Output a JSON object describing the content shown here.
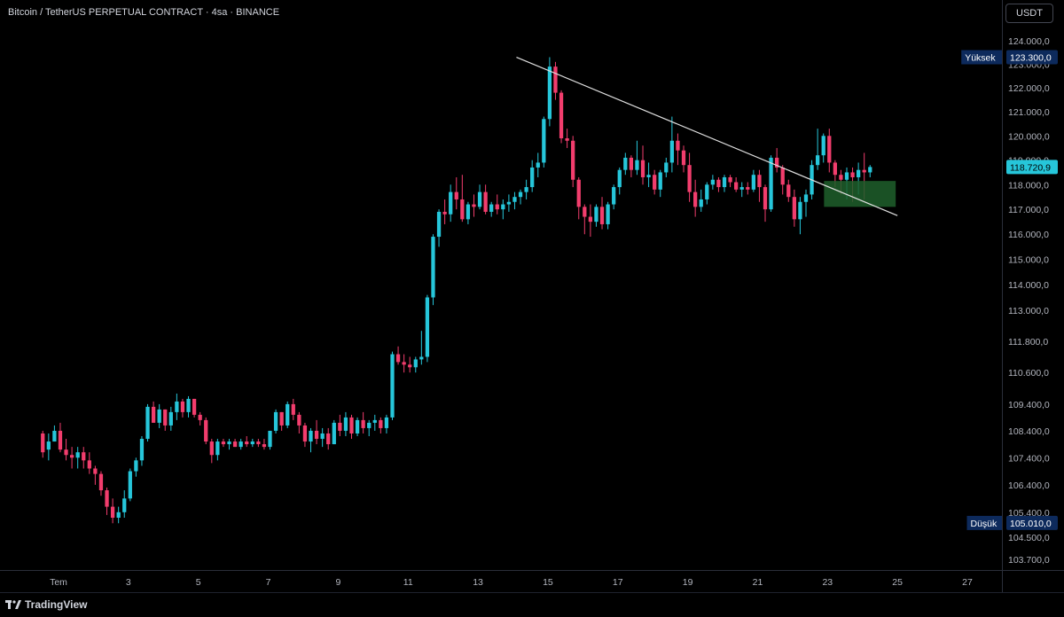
{
  "header": {
    "symbol_title": "Bitcoin / TetherUS PERPETUAL CONTRACT · 4sa · BINANCE",
    "currency": "USDT"
  },
  "footer": {
    "brand": "TradingView"
  },
  "colors": {
    "up": "#26c6da",
    "down": "#f23d6d",
    "trendline": "#e0e0e0",
    "zone": "#1f5f2b",
    "badge": "#0d2a5c",
    "current_badge": "#26c6da"
  },
  "chart_data": {
    "type": "candlestick",
    "title": "Bitcoin / TetherUS PERPETUAL CONTRACT · 4sa · BINANCE",
    "ylim": [
      103100,
      124700
    ],
    "yticks": [
      {
        "value": 124000,
        "label": "124.000,0"
      },
      {
        "value": 123000,
        "label": "123.000,0"
      },
      {
        "value": 122000,
        "label": "122.000,0"
      },
      {
        "value": 121000,
        "label": "121.000,0"
      },
      {
        "value": 120000,
        "label": "120.000,0"
      },
      {
        "value": 119000,
        "label": "119.000,0"
      },
      {
        "value": 118000,
        "label": "118.000,0"
      },
      {
        "value": 117000,
        "label": "117.000,0"
      },
      {
        "value": 116000,
        "label": "116.000,0"
      },
      {
        "value": 115000,
        "label": "115.000,0"
      },
      {
        "value": 114000,
        "label": "114.000,0"
      },
      {
        "value": 113000,
        "label": "113.000,0"
      },
      {
        "value": 111800,
        "label": "111.800,0"
      },
      {
        "value": 110600,
        "label": "110.600,0"
      },
      {
        "value": 109400,
        "label": "109.400,0"
      },
      {
        "value": 108400,
        "label": "108.400,0"
      },
      {
        "value": 107400,
        "label": "107.400,0"
      },
      {
        "value": 106400,
        "label": "106.400,0"
      },
      {
        "value": 105400,
        "label": "105.400,0"
      },
      {
        "value": 104500,
        "label": "104.500,0"
      },
      {
        "value": 103700,
        "label": "103.700,0"
      }
    ],
    "xticks": [
      {
        "day": 1,
        "label": "Tem"
      },
      {
        "day": 3,
        "label": "3"
      },
      {
        "day": 5,
        "label": "5"
      },
      {
        "day": 7,
        "label": "7"
      },
      {
        "day": 9,
        "label": "9"
      },
      {
        "day": 11,
        "label": "11"
      },
      {
        "day": 13,
        "label": "13"
      },
      {
        "day": 15,
        "label": "15"
      },
      {
        "day": 17,
        "label": "17"
      },
      {
        "day": 19,
        "label": "19"
      },
      {
        "day": 21,
        "label": "21"
      },
      {
        "day": 23,
        "label": "23"
      },
      {
        "day": 25,
        "label": "25"
      },
      {
        "day": 27,
        "label": "27"
      }
    ],
    "xlim": [
      0.5,
      28.0
    ],
    "start_day": 0.55,
    "bars_per_day": 6,
    "ohlc": [
      [
        108300,
        108400,
        107400,
        107600
      ],
      [
        107700,
        108300,
        107300,
        108000
      ],
      [
        108000,
        108600,
        108000,
        108400
      ],
      [
        108400,
        108700,
        107600,
        107700
      ],
      [
        107700,
        108100,
        107300,
        107500
      ],
      [
        107500,
        107800,
        107000,
        107400
      ],
      [
        107400,
        107800,
        107000,
        107600
      ],
      [
        107600,
        107800,
        107000,
        107300
      ],
      [
        107300,
        107600,
        106800,
        107000
      ],
      [
        107000,
        107100,
        106400,
        106800
      ],
      [
        106800,
        106900,
        106000,
        106200
      ],
      [
        106200,
        106300,
        105300,
        105600
      ],
      [
        105600,
        105900,
        105000,
        105200
      ],
      [
        105200,
        105600,
        105000,
        105400
      ],
      [
        105400,
        106200,
        105200,
        105900
      ],
      [
        105900,
        107000,
        105800,
        106900
      ],
      [
        106900,
        107400,
        106700,
        107300
      ],
      [
        107300,
        108200,
        107100,
        108100
      ],
      [
        108100,
        109400,
        108000,
        109300
      ],
      [
        109300,
        109500,
        108700,
        108700
      ],
      [
        108700,
        109400,
        108500,
        109200
      ],
      [
        109200,
        109200,
        108400,
        108600
      ],
      [
        108600,
        109300,
        108400,
        109100
      ],
      [
        109100,
        109800,
        108800,
        109500
      ],
      [
        109500,
        109600,
        108900,
        109100
      ],
      [
        109100,
        109700,
        108900,
        109600
      ],
      [
        109600,
        109600,
        108900,
        109000
      ],
      [
        109000,
        109100,
        108600,
        108800
      ],
      [
        108800,
        108900,
        107900,
        108000
      ],
      [
        108000,
        108100,
        107200,
        107500
      ],
      [
        107500,
        108100,
        107300,
        108000
      ],
      [
        108000,
        108100,
        107800,
        107900
      ],
      [
        107900,
        108100,
        107700,
        108000
      ],
      [
        108000,
        108100,
        107800,
        107800
      ],
      [
        107800,
        108100,
        107700,
        108000
      ],
      [
        108000,
        108200,
        107800,
        107900
      ],
      [
        107900,
        108100,
        107800,
        108000
      ],
      [
        108000,
        108100,
        107800,
        107900
      ],
      [
        107900,
        108100,
        107700,
        107800
      ],
      [
        107800,
        108400,
        107700,
        108400
      ],
      [
        108400,
        109200,
        108300,
        109100
      ],
      [
        109100,
        109100,
        108400,
        108600
      ],
      [
        108600,
        109500,
        108500,
        109400
      ],
      [
        109400,
        109600,
        108800,
        109000
      ],
      [
        109000,
        109100,
        108300,
        108600
      ],
      [
        108600,
        108700,
        107800,
        108000
      ],
      [
        108000,
        108500,
        107600,
        108400
      ],
      [
        108400,
        108800,
        107900,
        108100
      ],
      [
        108100,
        108500,
        107800,
        108300
      ],
      [
        108300,
        108500,
        107700,
        107900
      ],
      [
        107900,
        108800,
        107900,
        108700
      ],
      [
        108700,
        109000,
        108200,
        108400
      ],
      [
        108400,
        109100,
        108200,
        108900
      ],
      [
        108900,
        109000,
        108100,
        108300
      ],
      [
        108300,
        108900,
        108200,
        108800
      ],
      [
        108800,
        109100,
        108300,
        108500
      ],
      [
        108500,
        108800,
        108200,
        108700
      ],
      [
        108700,
        109000,
        108400,
        108800
      ],
      [
        108800,
        108900,
        108300,
        108500
      ],
      [
        108500,
        109000,
        108300,
        108900
      ],
      [
        108900,
        111400,
        108800,
        111300
      ],
      [
        111300,
        111600,
        110900,
        111000
      ],
      [
        111000,
        111300,
        110600,
        110900
      ],
      [
        110900,
        111200,
        110600,
        110800
      ],
      [
        110800,
        111200,
        110600,
        111100
      ],
      [
        111100,
        112200,
        110900,
        111200
      ],
      [
        111200,
        113600,
        111000,
        113500
      ],
      [
        113500,
        116000,
        113200,
        115900
      ],
      [
        115900,
        117000,
        115500,
        116900
      ],
      [
        116900,
        117400,
        116400,
        116800
      ],
      [
        116800,
        118000,
        116500,
        117700
      ],
      [
        117700,
        118300,
        117000,
        117400
      ],
      [
        117400,
        118400,
        116500,
        116600
      ],
      [
        116600,
        117300,
        116400,
        117200
      ],
      [
        117200,
        117600,
        116700,
        117100
      ],
      [
        117100,
        118000,
        117000,
        117700
      ],
      [
        117700,
        118000,
        116800,
        116900
      ],
      [
        116900,
        117300,
        116700,
        117200
      ],
      [
        117200,
        117600,
        116800,
        117000
      ],
      [
        117000,
        117400,
        116600,
        117200
      ],
      [
        117200,
        117600,
        116900,
        117300
      ],
      [
        117300,
        117700,
        117000,
        117500
      ],
      [
        117500,
        117800,
        117200,
        117700
      ],
      [
        117700,
        118200,
        117400,
        117900
      ],
      [
        117900,
        119000,
        117700,
        118700
      ],
      [
        118700,
        119300,
        118300,
        118900
      ],
      [
        118900,
        120800,
        118700,
        120700
      ],
      [
        120700,
        123300,
        120400,
        122900
      ],
      [
        122900,
        123100,
        121500,
        121800
      ],
      [
        121800,
        121900,
        119700,
        119900
      ],
      [
        119900,
        120300,
        119500,
        119800
      ],
      [
        119800,
        120000,
        117900,
        118200
      ],
      [
        118200,
        118300,
        116600,
        117100
      ],
      [
        117100,
        117200,
        116000,
        116700
      ],
      [
        116700,
        117200,
        115900,
        116500
      ],
      [
        116500,
        117200,
        116300,
        117100
      ],
      [
        117100,
        117500,
        116200,
        116400
      ],
      [
        116400,
        117300,
        116200,
        117200
      ],
      [
        117200,
        118000,
        117000,
        117900
      ],
      [
        117900,
        118700,
        117600,
        118600
      ],
      [
        118600,
        119300,
        118400,
        119100
      ],
      [
        119100,
        119200,
        118300,
        118600
      ],
      [
        118600,
        119800,
        118400,
        119000
      ],
      [
        119000,
        119600,
        118000,
        118300
      ],
      [
        118300,
        118900,
        117900,
        118400
      ],
      [
        118400,
        118600,
        117600,
        117800
      ],
      [
        117800,
        118600,
        117500,
        118500
      ],
      [
        118500,
        119100,
        118300,
        118900
      ],
      [
        118900,
        120800,
        118500,
        119800
      ],
      [
        119800,
        120100,
        118800,
        119400
      ],
      [
        119400,
        119600,
        118500,
        118800
      ],
      [
        118800,
        119300,
        117300,
        117700
      ],
      [
        117700,
        118200,
        116700,
        117100
      ],
      [
        117100,
        117800,
        116900,
        117400
      ],
      [
        117400,
        118100,
        117200,
        118000
      ],
      [
        118000,
        118400,
        117800,
        118200
      ],
      [
        118200,
        118300,
        117700,
        117900
      ],
      [
        117900,
        118400,
        117700,
        118300
      ],
      [
        118300,
        118400,
        117900,
        118100
      ],
      [
        118100,
        118300,
        117700,
        117800
      ],
      [
        117800,
        118100,
        117500,
        117900
      ],
      [
        117900,
        118100,
        117600,
        117800
      ],
      [
        117800,
        118600,
        117700,
        118400
      ],
      [
        118400,
        118600,
        117300,
        117900
      ],
      [
        117900,
        118000,
        116500,
        117000
      ],
      [
        117000,
        119200,
        116900,
        119100
      ],
      [
        119100,
        119500,
        118500,
        118700
      ],
      [
        118700,
        118800,
        117600,
        118000
      ],
      [
        118000,
        118200,
        117300,
        117500
      ],
      [
        117500,
        117800,
        116300,
        116600
      ],
      [
        116600,
        117500,
        116000,
        117300
      ],
      [
        117300,
        117800,
        116700,
        117600
      ],
      [
        117600,
        119000,
        117400,
        118800
      ],
      [
        118800,
        120300,
        118600,
        119200
      ],
      [
        119200,
        120100,
        118900,
        120000
      ],
      [
        120000,
        120300,
        118500,
        118900
      ],
      [
        118900,
        119000,
        117900,
        118400
      ],
      [
        118400,
        118600,
        117600,
        118200
      ],
      [
        118200,
        118700,
        117400,
        118500
      ],
      [
        118500,
        118700,
        117300,
        118300
      ],
      [
        118300,
        118900,
        117600,
        118600
      ],
      [
        118600,
        119300,
        117400,
        118500
      ],
      [
        118500,
        118800,
        118300,
        118720
      ]
    ],
    "trendline": {
      "start": [
        14.1,
        123300
      ],
      "end": [
        25.0,
        116750
      ]
    },
    "zone": {
      "day_start": 22.9,
      "day_end": 24.95,
      "price_top": 118150,
      "price_bottom": 117100
    },
    "high": {
      "label": "Yüksek",
      "value": 123300,
      "text": "123.300,0"
    },
    "low": {
      "label": "Düşük",
      "value": 105010,
      "text": "105.010,0"
    },
    "current": {
      "value": 118720,
      "text": "118.720,9"
    }
  }
}
